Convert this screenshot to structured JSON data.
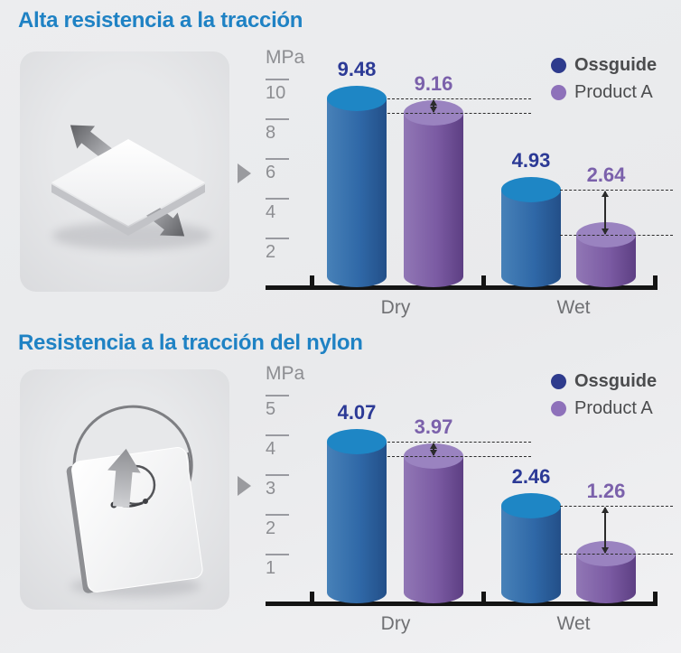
{
  "colors": {
    "background": "#ebecee",
    "title_blue": "#1f82c4",
    "ossguide_top": "#1e86c5",
    "ossguide_body_light": "#4781b8",
    "ossguide_body_mid": "#2f68a7",
    "ossguide_body_dark": "#234f88",
    "productA_top": "#9a83c0",
    "productA_body_light": "#9177b5",
    "productA_body_mid": "#7b5ba3",
    "productA_body_dark": "#5d3f83",
    "ossguide_label": "#2c3a96",
    "productA_label": "#7b61ab",
    "legend_ossguide_dot": "#2e3b8d",
    "legend_productA_dot": "#8e71ba",
    "legend_text": "#4b4c4e",
    "axis_text": "#8d8e92",
    "category_text": "#6f7073",
    "axis_line": "#141414",
    "annotation": "#2b2b2b",
    "pointer_gray": "#9a9b9f"
  },
  "sections": [
    {
      "title": "Alta resistencia a la tracción",
      "illustration": "membrane-plate-with-tension-arrows"
    },
    {
      "title": "Resistencia a la tracción del nylon",
      "illustration": "membrane-plate-with-suture-loop"
    }
  ],
  "chart_data": [
    {
      "type": "bar",
      "title": "Alta resistencia a la tracción",
      "ylabel": "MPa",
      "categories": [
        "Dry",
        "Wet"
      ],
      "series": [
        {
          "name": "Ossguide",
          "values": [
            9.48,
            4.93
          ]
        },
        {
          "name": "Product A",
          "values": [
            9.16,
            2.64
          ]
        }
      ],
      "yticks": [
        2,
        4,
        6,
        8,
        10
      ],
      "ylim": [
        0,
        11
      ],
      "legend_position": "top-right",
      "grid": false
    },
    {
      "type": "bar",
      "title": "Resistencia a la tracción del nylon",
      "ylabel": "MPa",
      "categories": [
        "Dry",
        "Wet"
      ],
      "series": [
        {
          "name": "Ossguide",
          "values": [
            4.07,
            2.46
          ]
        },
        {
          "name": "Product A",
          "values": [
            3.97,
            1.26
          ]
        }
      ],
      "yticks": [
        1,
        2,
        3,
        4,
        5
      ],
      "ylim": [
        0,
        5.5
      ],
      "legend_position": "top-right",
      "grid": false
    }
  ]
}
